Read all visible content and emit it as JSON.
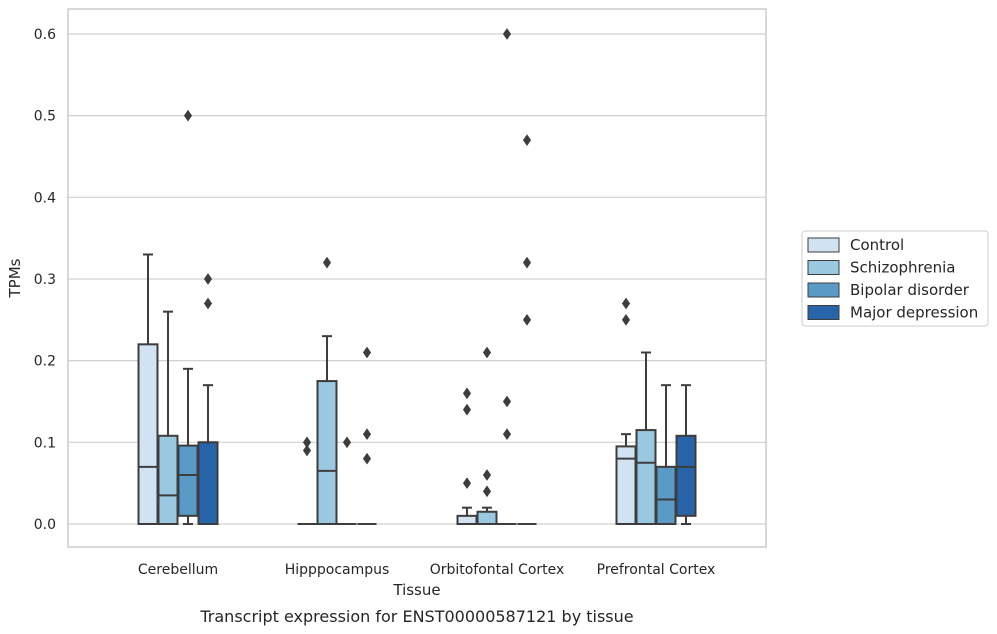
{
  "chart_data": {
    "type": "box",
    "xlabel": "Tissue",
    "ylabel": "TPMs",
    "caption": "Transcript expression for ENST00000587121 by tissue",
    "ylim": [
      -0.03,
      0.63
    ],
    "yticks": [
      0.0,
      0.1,
      0.2,
      0.3,
      0.4,
      0.5,
      0.6
    ],
    "ytick_labels": [
      "0.0",
      "0.1",
      "0.2",
      "0.3",
      "0.4",
      "0.5",
      "0.6"
    ],
    "grid": true,
    "legend_position": "right",
    "categories": [
      "Cerebellum",
      "Hipppocampus",
      "Orbitofontal Cortex",
      "Prefrontal Cortex"
    ],
    "series": [
      {
        "name": "Control",
        "color": "#d1e2f2",
        "boxes": [
          {
            "whislo": 0.0,
            "q1": 0.0,
            "med": 0.07,
            "q3": 0.22,
            "whishi": 0.33,
            "fliers": []
          },
          {
            "whislo": 0.0,
            "q1": 0.0,
            "med": 0.0,
            "q3": 0.0,
            "whishi": 0.0,
            "fliers": [
              0.1,
              0.09
            ]
          },
          {
            "whislo": 0.0,
            "q1": 0.0,
            "med": 0.0,
            "q3": 0.01,
            "whishi": 0.02,
            "fliers": [
              0.16,
              0.14,
              0.05
            ]
          },
          {
            "whislo": 0.0,
            "q1": 0.0,
            "med": 0.08,
            "q3": 0.095,
            "whishi": 0.11,
            "fliers": [
              0.27,
              0.25
            ]
          }
        ]
      },
      {
        "name": "Schizophrenia",
        "color": "#9ac8e0",
        "boxes": [
          {
            "whislo": 0.0,
            "q1": 0.0,
            "med": 0.035,
            "q3": 0.108,
            "whishi": 0.26,
            "fliers": []
          },
          {
            "whislo": 0.0,
            "q1": 0.0,
            "med": 0.065,
            "q3": 0.175,
            "whishi": 0.23,
            "fliers": [
              0.32
            ]
          },
          {
            "whislo": 0.0,
            "q1": 0.0,
            "med": 0.0,
            "q3": 0.015,
            "whishi": 0.02,
            "fliers": [
              0.21,
              0.06,
              0.04
            ]
          },
          {
            "whislo": 0.0,
            "q1": 0.0,
            "med": 0.075,
            "q3": 0.115,
            "whishi": 0.21,
            "fliers": []
          }
        ]
      },
      {
        "name": "Bipolar disorder",
        "color": "#5a9ac6",
        "boxes": [
          {
            "whislo": 0.0,
            "q1": 0.01,
            "med": 0.06,
            "q3": 0.096,
            "whishi": 0.19,
            "fliers": [
              0.5
            ]
          },
          {
            "whislo": 0.0,
            "q1": 0.0,
            "med": 0.0,
            "q3": 0.0,
            "whishi": 0.0,
            "fliers": [
              0.1
            ]
          },
          {
            "whislo": 0.0,
            "q1": 0.0,
            "med": 0.0,
            "q3": 0.0,
            "whishi": 0.0,
            "fliers": [
              0.6,
              0.15,
              0.11
            ]
          },
          {
            "whislo": 0.0,
            "q1": 0.0,
            "med": 0.03,
            "q3": 0.07,
            "whishi": 0.17,
            "fliers": []
          }
        ]
      },
      {
        "name": "Major depression",
        "color": "#2865a8",
        "boxes": [
          {
            "whislo": 0.0,
            "q1": 0.0,
            "med": 0.1,
            "q3": 0.1,
            "whishi": 0.17,
            "fliers": [
              0.3,
              0.27
            ]
          },
          {
            "whislo": 0.0,
            "q1": 0.0,
            "med": 0.0,
            "q3": 0.0,
            "whishi": 0.0,
            "fliers": [
              0.21,
              0.11,
              0.08
            ]
          },
          {
            "whislo": 0.0,
            "q1": 0.0,
            "med": 0.0,
            "q3": 0.0,
            "whishi": 0.0,
            "fliers": [
              0.47,
              0.32,
              0.25
            ]
          },
          {
            "whislo": 0.0,
            "q1": 0.01,
            "med": 0.07,
            "q3": 0.108,
            "whishi": 0.17,
            "fliers": []
          }
        ]
      }
    ]
  }
}
